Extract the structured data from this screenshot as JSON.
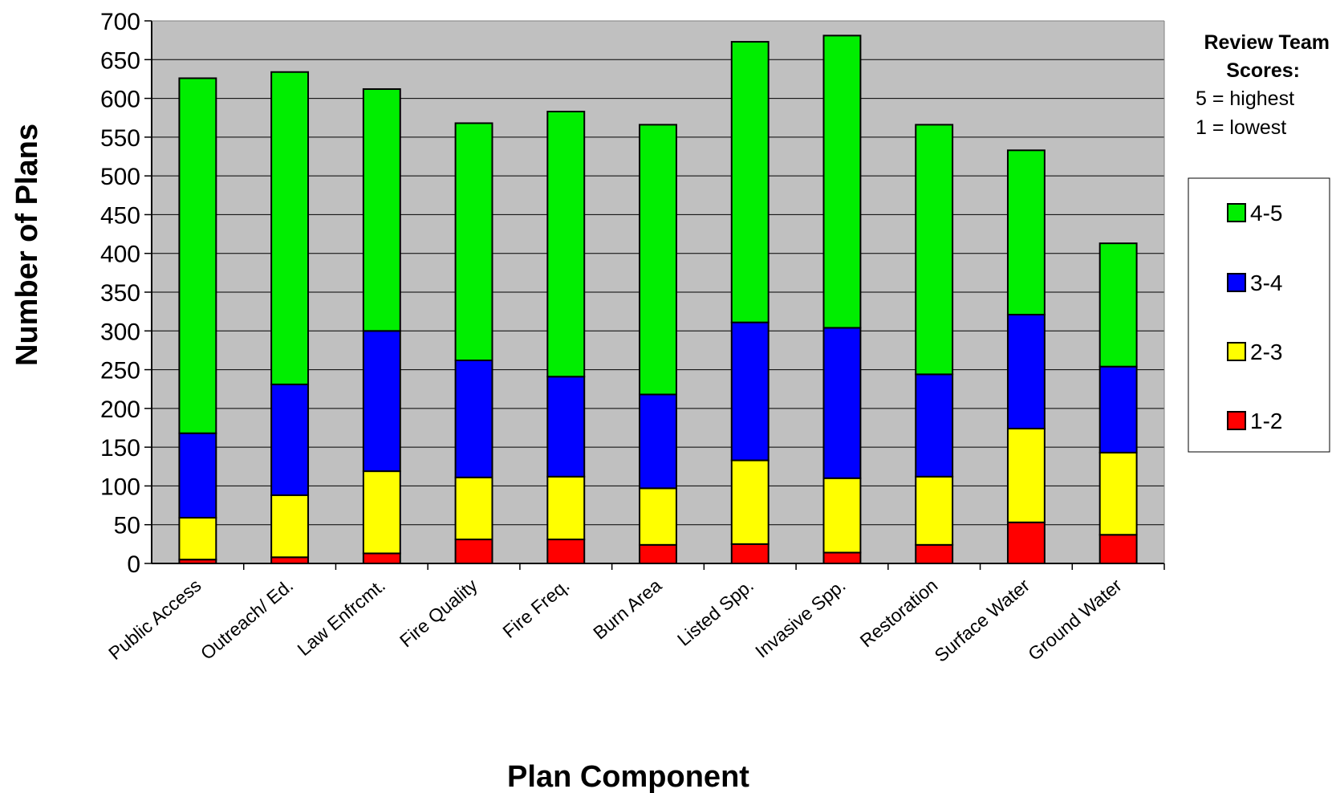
{
  "chart_data": {
    "type": "bar",
    "stacked": true,
    "categories": [
      "Public Access",
      "Outreach/ Ed.",
      "Law Enfrcmt.",
      "Fire Quality",
      "Fire Freq.",
      "Burn Area",
      "Listed Spp.",
      "Invasive Spp.",
      "Restoration",
      "Surface Water",
      "Ground Water"
    ],
    "series": [
      {
        "name": "1-2",
        "color": "#ff0000",
        "values": [
          5,
          8,
          13,
          31,
          31,
          24,
          25,
          14,
          24,
          53,
          37
        ]
      },
      {
        "name": "2-3",
        "color": "#ffff00",
        "values": [
          54,
          80,
          106,
          80,
          81,
          73,
          108,
          96,
          88,
          121,
          106
        ]
      },
      {
        "name": "3-4",
        "color": "#0000ff",
        "values": [
          109,
          143,
          181,
          151,
          129,
          121,
          178,
          194,
          132,
          147,
          111
        ]
      },
      {
        "name": "4-5",
        "color": "#00ee00",
        "values": [
          458,
          403,
          312,
          306,
          342,
          348,
          362,
          377,
          322,
          212,
          159
        ]
      }
    ],
    "xlabel": "Plan Component",
    "ylabel": "Number of Plans",
    "ylim": [
      0,
      700
    ],
    "yticks": [
      "0",
      "50",
      "100",
      "150",
      "200",
      "250",
      "300",
      "350",
      "400",
      "450",
      "500",
      "550",
      "600",
      "650",
      "700"
    ],
    "grid": true,
    "legend_position": "right",
    "legend": {
      "title_line1": "Review Team",
      "title_line2": "Scores:",
      "note_line1": "5 = highest",
      "note_line2": "1 = lowest",
      "order": [
        "4-5",
        "3-4",
        "2-3",
        "1-2"
      ]
    },
    "plot_background": "#c0c0c0"
  }
}
